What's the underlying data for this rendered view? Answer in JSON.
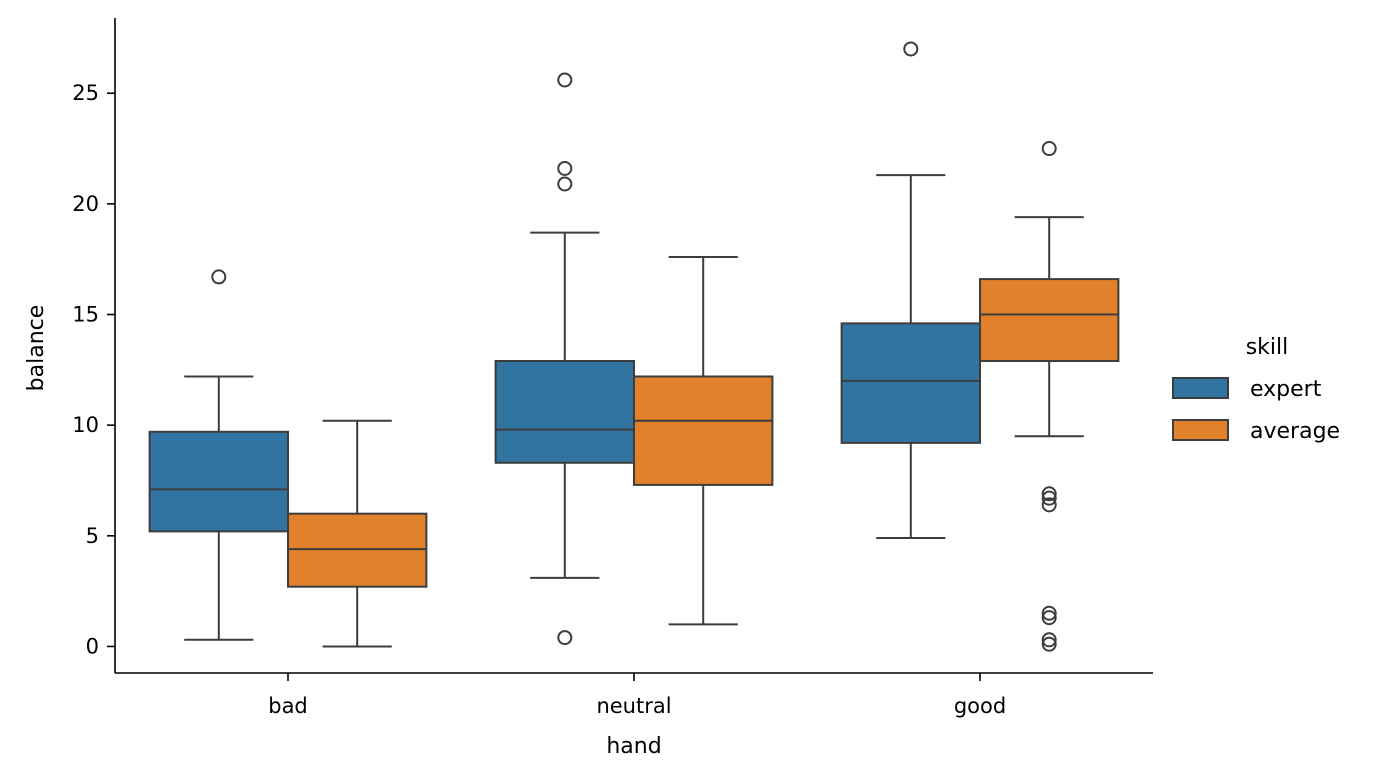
{
  "chart_data": {
    "type": "box",
    "xlabel": "hand",
    "ylabel": "balance",
    "categories": [
      "bad",
      "neutral",
      "good"
    ],
    "ylim": [
      -1.2,
      28.4
    ],
    "yticks": [
      0,
      5,
      10,
      15,
      20,
      25
    ],
    "grid": false,
    "legend": {
      "title": "skill",
      "placement": "right",
      "entries": [
        "expert",
        "average"
      ]
    },
    "series": [
      {
        "name": "expert",
        "color": "#3274a1",
        "boxes": [
          {
            "whislo": 0.3,
            "q1": 5.2,
            "med": 7.1,
            "q3": 9.7,
            "whishi": 12.2,
            "fliers": [
              16.7
            ]
          },
          {
            "whislo": 3.1,
            "q1": 8.3,
            "med": 9.8,
            "q3": 12.9,
            "whishi": 18.7,
            "fliers": [
              0.4,
              20.9,
              21.6,
              25.6
            ]
          },
          {
            "whislo": 4.9,
            "q1": 9.2,
            "med": 12.0,
            "q3": 14.6,
            "whishi": 21.3,
            "fliers": [
              27.0
            ]
          }
        ]
      },
      {
        "name": "average",
        "color": "#e1812c",
        "boxes": [
          {
            "whislo": 0.0,
            "q1": 2.7,
            "med": 4.4,
            "q3": 6.0,
            "whishi": 10.2,
            "fliers": []
          },
          {
            "whislo": 1.0,
            "q1": 7.3,
            "med": 10.2,
            "q3": 12.2,
            "whishi": 17.6,
            "fliers": []
          },
          {
            "whislo": 9.5,
            "q1": 12.9,
            "med": 15.0,
            "q3": 16.6,
            "whishi": 19.4,
            "fliers": [
              0.1,
              0.3,
              1.3,
              1.5,
              6.4,
              6.7,
              6.9,
              22.5
            ]
          }
        ]
      }
    ]
  }
}
